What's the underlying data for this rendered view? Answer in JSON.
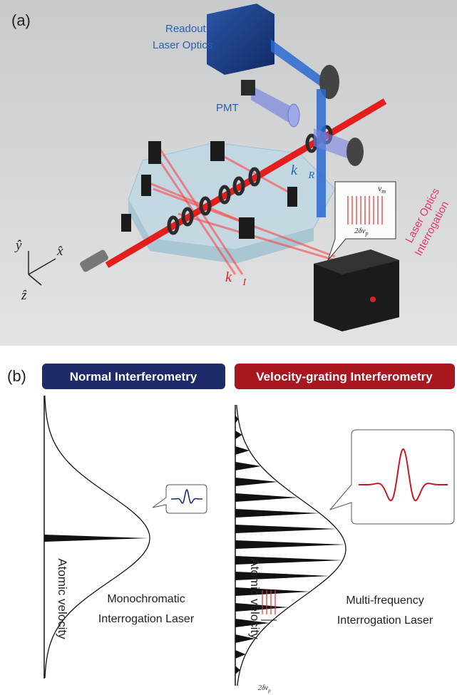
{
  "panel_a": {
    "label": "(a)",
    "readout": [
      "Readout",
      "Laser Optics"
    ],
    "pmt": "PMT",
    "k_r": {
      "symbol": "k⃗",
      "subscript": "R"
    },
    "k_i": {
      "symbol": "k⃗",
      "subscript": "I"
    },
    "bubble": {
      "width": "2δν",
      "width_sub": "p",
      "spacing": "v",
      "spacing_sub": "m"
    },
    "interrogation": [
      "Interrogation",
      "Laser Optics"
    ],
    "axes": {
      "y": "ŷ",
      "x": "x̂",
      "z": "ẑ"
    }
  },
  "panel_b": {
    "label": "(b)",
    "left": {
      "title": "Normal Interferometry",
      "axis": "Atomic velocity",
      "caption": [
        "Monochromatic",
        "Interrogation Laser"
      ]
    },
    "right": {
      "title": "Velocity-grating Interferometry",
      "axis": "Atomic velocity",
      "caption": [
        "Multi-frequency",
        "Interrogation Laser"
      ],
      "spacing": "2δν",
      "spacing_sub": "p"
    }
  }
}
